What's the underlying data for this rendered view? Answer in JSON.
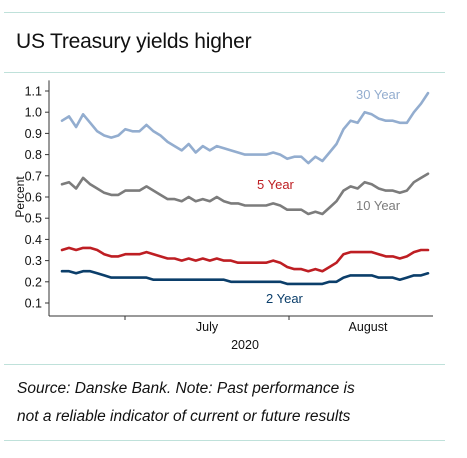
{
  "title": "US Treasury yields higher",
  "note_line1": "Source: Danske Bank. Note: Past performance is",
  "note_line2": "not a reliable indicator of current or future results",
  "colors": {
    "rule": "#bfe1da",
    "y30": "#93adcf",
    "y10": "#7c7c7c",
    "y5": "#be1e23",
    "y2": "#0b3e6a"
  },
  "chart_data": {
    "type": "line",
    "title": "US Treasury yields higher",
    "xlabel": "2020",
    "ylabel": "Percent",
    "ylim": [
      0.05,
      1.15
    ],
    "yticks": [
      "0.1",
      "0.2",
      "0.3",
      "0.4",
      "0.5",
      "0.6",
      "0.7",
      "0.8",
      "0.9",
      "1.0",
      "1.1"
    ],
    "xticks": [
      "July",
      "August"
    ],
    "grid": false,
    "series": [
      {
        "name": "30 Year",
        "values": [
          0.96,
          0.98,
          0.93,
          0.99,
          0.95,
          0.91,
          0.89,
          0.88,
          0.89,
          0.92,
          0.91,
          0.91,
          0.94,
          0.91,
          0.89,
          0.86,
          0.84,
          0.82,
          0.85,
          0.81,
          0.84,
          0.82,
          0.84,
          0.83,
          0.82,
          0.81,
          0.8,
          0.8,
          0.8,
          0.8,
          0.81,
          0.8,
          0.78,
          0.79,
          0.79,
          0.76,
          0.79,
          0.77,
          0.81,
          0.85,
          0.92,
          0.96,
          0.95,
          1.0,
          0.99,
          0.97,
          0.96,
          0.96,
          0.95,
          0.95,
          1.0,
          1.04,
          1.09
        ]
      },
      {
        "name": "10 Year",
        "values": [
          0.66,
          0.67,
          0.64,
          0.69,
          0.66,
          0.64,
          0.62,
          0.61,
          0.61,
          0.63,
          0.63,
          0.63,
          0.65,
          0.63,
          0.61,
          0.59,
          0.59,
          0.58,
          0.6,
          0.58,
          0.59,
          0.58,
          0.6,
          0.58,
          0.57,
          0.57,
          0.56,
          0.56,
          0.56,
          0.56,
          0.57,
          0.56,
          0.54,
          0.54,
          0.54,
          0.52,
          0.53,
          0.52,
          0.55,
          0.58,
          0.63,
          0.65,
          0.64,
          0.67,
          0.66,
          0.64,
          0.63,
          0.63,
          0.62,
          0.63,
          0.67,
          0.69,
          0.71
        ]
      },
      {
        "name": "5 Year",
        "values": [
          0.35,
          0.36,
          0.35,
          0.36,
          0.36,
          0.35,
          0.33,
          0.32,
          0.32,
          0.33,
          0.33,
          0.33,
          0.34,
          0.33,
          0.32,
          0.31,
          0.31,
          0.3,
          0.31,
          0.3,
          0.31,
          0.3,
          0.31,
          0.3,
          0.3,
          0.29,
          0.29,
          0.29,
          0.29,
          0.29,
          0.3,
          0.29,
          0.27,
          0.26,
          0.26,
          0.25,
          0.26,
          0.25,
          0.27,
          0.29,
          0.33,
          0.34,
          0.34,
          0.34,
          0.34,
          0.33,
          0.32,
          0.32,
          0.31,
          0.32,
          0.34,
          0.35,
          0.35
        ]
      },
      {
        "name": "2 Year",
        "values": [
          0.25,
          0.25,
          0.24,
          0.25,
          0.25,
          0.24,
          0.23,
          0.22,
          0.22,
          0.22,
          0.22,
          0.22,
          0.22,
          0.21,
          0.21,
          0.21,
          0.21,
          0.21,
          0.21,
          0.21,
          0.21,
          0.21,
          0.21,
          0.21,
          0.2,
          0.2,
          0.2,
          0.2,
          0.2,
          0.2,
          0.2,
          0.2,
          0.19,
          0.19,
          0.19,
          0.19,
          0.19,
          0.19,
          0.2,
          0.2,
          0.22,
          0.23,
          0.23,
          0.23,
          0.23,
          0.22,
          0.22,
          0.22,
          0.21,
          0.22,
          0.23,
          0.23,
          0.24
        ]
      }
    ]
  }
}
